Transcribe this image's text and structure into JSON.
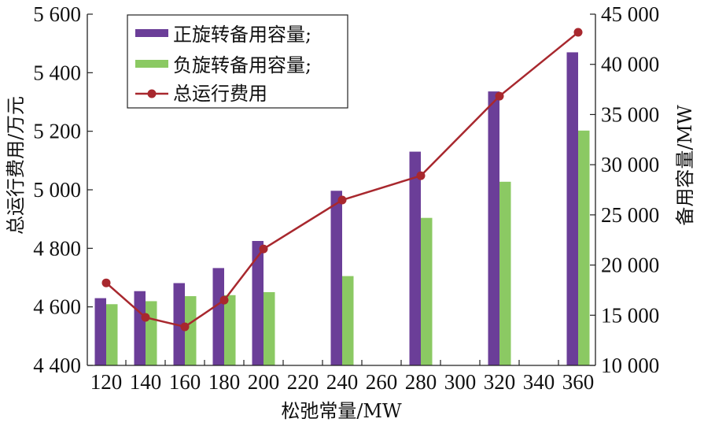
{
  "chart_data": {
    "type": "bar",
    "title": "",
    "xlabel": "松弛常量/MW",
    "ylabel_left": "总运行费用/万元",
    "ylabel_right": "备用容量/MW",
    "categories": [
      "120",
      "140",
      "160",
      "180",
      "200",
      "220",
      "240",
      "260",
      "280",
      "300",
      "320",
      "340",
      "360"
    ],
    "x_tick_labels": [
      "120",
      "140",
      "160",
      "180",
      "200",
      "220",
      "240",
      "260",
      "280",
      "300",
      "320",
      "340",
      "360"
    ],
    "ylim_left": [
      4400,
      5600
    ],
    "yticks_left": [
      4400,
      4600,
      4800,
      5000,
      5200,
      5400,
      5600
    ],
    "ytick_labels_left": [
      "4 400",
      "4 600",
      "4 800",
      "5 000",
      "5 200",
      "5 400",
      "5 600"
    ],
    "ylim_right": [
      10000,
      45000
    ],
    "yticks_right": [
      10000,
      15000,
      20000,
      25000,
      30000,
      35000,
      40000,
      45000
    ],
    "ytick_labels_right": [
      "10 000",
      "15 000",
      "20 000",
      "25 000",
      "30 000",
      "35 000",
      "40 000",
      "45 000"
    ],
    "grid": false,
    "legend_position": "top-left",
    "series": [
      {
        "name": "正旋转备用容量;",
        "type": "bar",
        "axis": "right",
        "color": "#6B3E98",
        "values": [
          16700,
          17400,
          18200,
          19700,
          22400,
          null,
          27400,
          null,
          31300,
          null,
          37300,
          null,
          41200
        ]
      },
      {
        "name": "负旋转备用容量;",
        "type": "bar",
        "axis": "right",
        "color": "#8BC963",
        "values": [
          16100,
          16400,
          16900,
          17000,
          17300,
          null,
          18900,
          null,
          24700,
          null,
          28300,
          null,
          33400
        ]
      },
      {
        "name": "总运行费用",
        "type": "line",
        "axis": "left",
        "color": "#A8282E",
        "values": [
          4682,
          4564,
          4532,
          4623,
          4798,
          null,
          4965,
          null,
          5048,
          null,
          5320,
          null,
          5538
        ]
      }
    ]
  }
}
